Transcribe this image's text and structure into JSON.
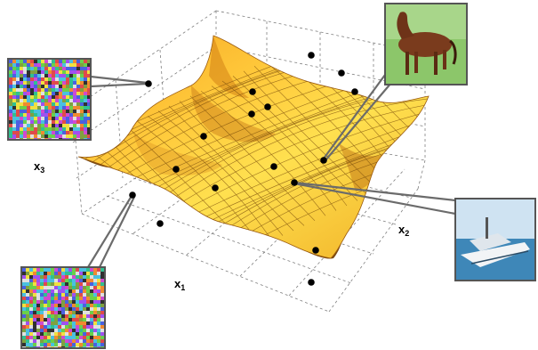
{
  "axes": {
    "x1": {
      "base": "x",
      "sub": "1"
    },
    "x2": {
      "base": "x",
      "sub": "2"
    },
    "x3": {
      "base": "x",
      "sub": "3"
    }
  },
  "images": [
    {
      "id": "noise-top-left",
      "kind": "random-noise",
      "connects_to_dot": 0
    },
    {
      "id": "horse",
      "kind": "photo-horse",
      "connects_to_dot": 9
    },
    {
      "id": "boat",
      "kind": "photo-boat",
      "connects_to_dot": 11
    },
    {
      "id": "noise-bottom-left",
      "kind": "random-noise",
      "connects_to_dot": 12
    }
  ],
  "colors": {
    "surface_light": "#ffd84a",
    "surface_mid": "#f6b126",
    "surface_dark": "#b46a12",
    "surface_underside": "#7a4a12",
    "mesh": "#7a4d0c",
    "dot": "#000000",
    "leader": "#6b6b6b",
    "box": "#7f7f7f",
    "horse_bg": "#7fbf5a",
    "horse_body": "#7a3b1d",
    "boat_water": "#3e87b8",
    "boat_sky": "#cfe3f2"
  }
}
